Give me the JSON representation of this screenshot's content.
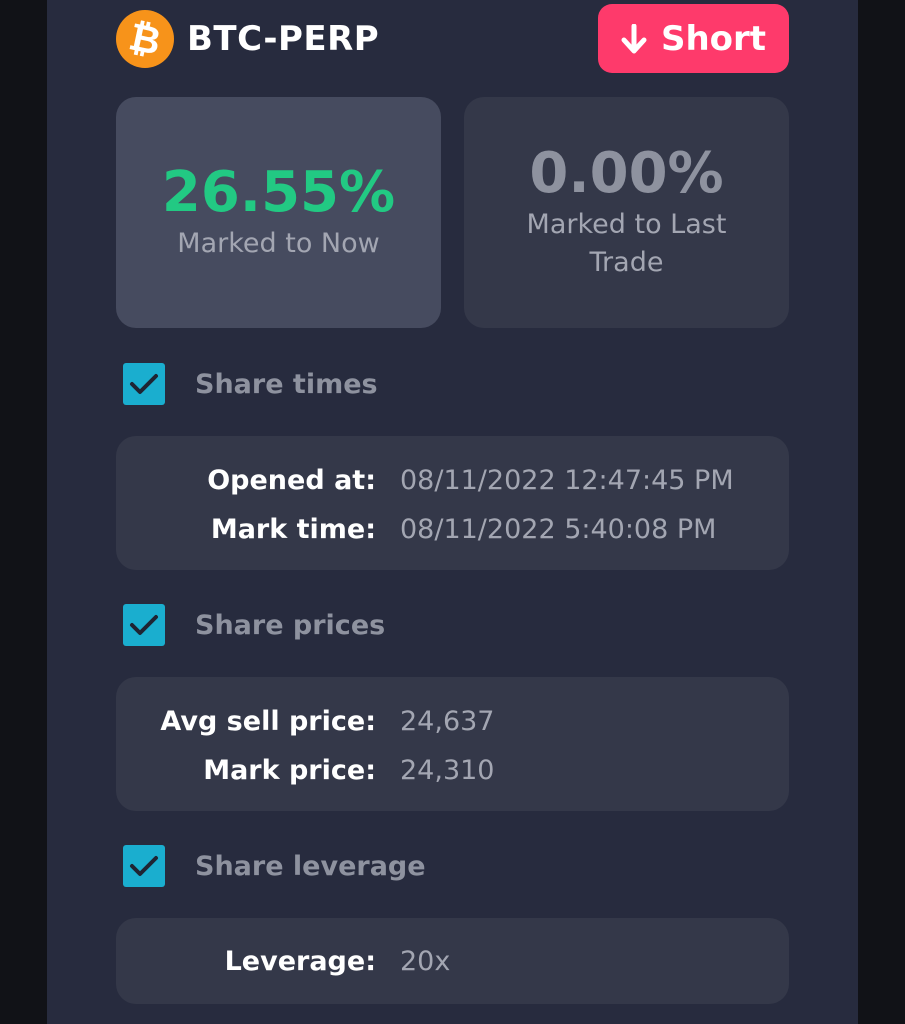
{
  "header": {
    "coin_icon": "bitcoin-icon",
    "symbol": "BTC-PERP",
    "side_button": {
      "label": "Short",
      "icon": "arrow-down-icon"
    }
  },
  "pnl": {
    "now": {
      "value": "26.55%",
      "label": "Marked to Now"
    },
    "last_trade": {
      "value": "0.00%",
      "label": "Marked to Last Trade"
    }
  },
  "times": {
    "toggle_label": "Share times",
    "checked": true,
    "opened_label": "Opened at:",
    "opened_value": "08/11/2022 12:47:45 PM",
    "mark_label": "Mark time:",
    "mark_value": "08/11/2022 5:40:08 PM"
  },
  "prices": {
    "toggle_label": "Share prices",
    "checked": true,
    "avg_label": "Avg sell price:",
    "avg_value": "24,637",
    "mark_label": "Mark price:",
    "mark_value": "24,310"
  },
  "leverage": {
    "toggle_label": "Share leverage",
    "checked": true,
    "label": "Leverage:",
    "value": "20x"
  },
  "colors": {
    "panel": "#272b3e",
    "positive": "#22c983",
    "short": "#fe3a6b",
    "checkbox": "#1aaecf",
    "bitcoin": "#f7931a"
  }
}
